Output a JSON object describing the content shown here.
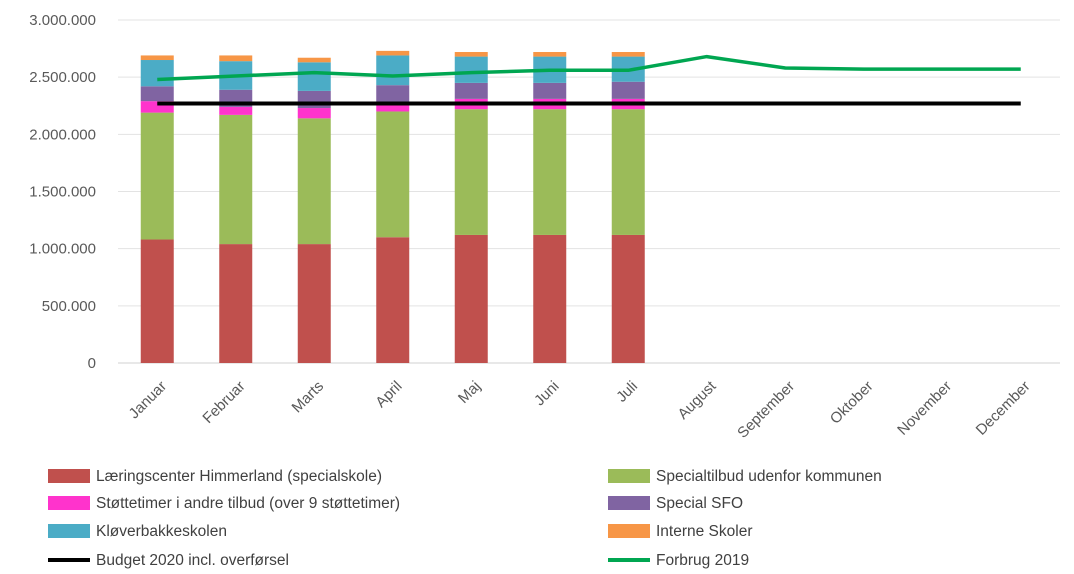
{
  "chart_data": {
    "type": "bar",
    "stacked": true,
    "categories": [
      "Januar",
      "Februar",
      "Marts",
      "April",
      "Maj",
      "Juni",
      "Juli",
      "August",
      "September",
      "Oktober",
      "November",
      "December"
    ],
    "ylim": [
      0,
      3000000
    ],
    "yticks": [
      0,
      500000,
      1000000,
      1500000,
      2000000,
      2500000,
      3000000
    ],
    "ytick_labels": [
      "0",
      "500.000",
      "1.000.000",
      "1.500.000",
      "2.000.000",
      "2.500.000",
      "3.000.000"
    ],
    "grid": true,
    "legend_position": "bottom",
    "series": [
      {
        "name": "Læringscenter Himmerland (specialskole)",
        "color": "#c0504d",
        "values": [
          1080000,
          1040000,
          1040000,
          1100000,
          1120000,
          1120000,
          1120000,
          null,
          null,
          null,
          null,
          null
        ]
      },
      {
        "name": "Specialtilbud udenfor kommunen",
        "color": "#9bbb59",
        "values": [
          1110000,
          1130000,
          1100000,
          1100000,
          1100000,
          1100000,
          1100000,
          null,
          null,
          null,
          null,
          null
        ]
      },
      {
        "name": "Støttetimer i andre tilbud (over 9 støttetimer)",
        "color": "#ff33cc",
        "values": [
          100000,
          70000,
          90000,
          70000,
          90000,
          90000,
          90000,
          null,
          null,
          null,
          null,
          null
        ]
      },
      {
        "name": "Special SFO",
        "color": "#8064a2",
        "values": [
          130000,
          150000,
          150000,
          160000,
          140000,
          140000,
          150000,
          null,
          null,
          null,
          null,
          null
        ]
      },
      {
        "name": "Kløverbakkeskolen",
        "color": "#4bacc6",
        "values": [
          230000,
          250000,
          250000,
          260000,
          230000,
          230000,
          220000,
          null,
          null,
          null,
          null,
          null
        ]
      },
      {
        "name": "Interne Skoler",
        "color": "#f79646",
        "values": [
          40000,
          50000,
          40000,
          40000,
          40000,
          40000,
          40000,
          null,
          null,
          null,
          null,
          null
        ]
      }
    ],
    "lines": [
      {
        "name": "Budget 2020 incl. overførsel",
        "color": "#000000",
        "values": [
          2270000,
          2270000,
          2270000,
          2270000,
          2270000,
          2270000,
          2270000,
          2270000,
          2270000,
          2270000,
          2270000,
          2270000
        ]
      },
      {
        "name": "Forbrug 2019",
        "color": "#00a651",
        "values": [
          2480000,
          2510000,
          2540000,
          2510000,
          2540000,
          2560000,
          2560000,
          2680000,
          2580000,
          2570000,
          2570000,
          2570000
        ]
      }
    ]
  }
}
